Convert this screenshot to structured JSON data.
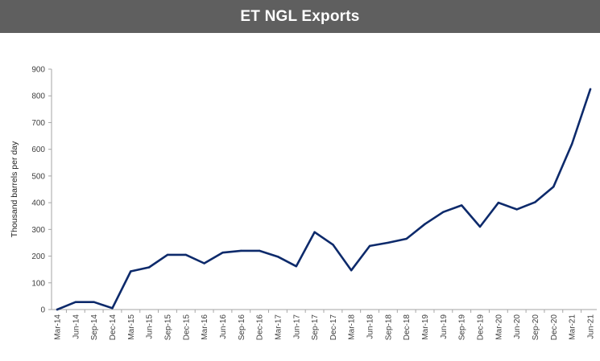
{
  "chart_data": {
    "type": "line",
    "title": "ET NGL Exports",
    "xlabel": "",
    "ylabel": "Thousand barrels per day",
    "ylim": [
      0,
      900
    ],
    "yticks": [
      "0",
      "100",
      "200",
      "300",
      "400",
      "500",
      "600",
      "700",
      "800",
      "900"
    ],
    "grid": false,
    "legend": "none",
    "line_color": "#0d2a6b",
    "categories": [
      "Mar-14",
      "Jun-14",
      "Sep-14",
      "Dec-14",
      "Mar-15",
      "Jun-15",
      "Sep-15",
      "Dec-15",
      "Mar-16",
      "Jun-16",
      "Sep-16",
      "Dec-16",
      "Mar-17",
      "Jun-17",
      "Sep-17",
      "Dec-17",
      "Mar-18",
      "Jun-18",
      "Sep-18",
      "Dec-18",
      "Mar-19",
      "Jun-19",
      "Sep-19",
      "Dec-19",
      "Mar-20",
      "Jun-20",
      "Sep-20",
      "Dec-20",
      "Mar-21",
      "Jun-21"
    ],
    "series": [
      {
        "name": "ET NGL Exports",
        "values": [
          0,
          28,
          28,
          5,
          143,
          158,
          205,
          205,
          173,
          213,
          220,
          220,
          198,
          162,
          290,
          243,
          147,
          238,
          250,
          265,
          320,
          365,
          390,
          310,
          400,
          375,
          402,
          460,
          620,
          825
        ]
      }
    ]
  }
}
